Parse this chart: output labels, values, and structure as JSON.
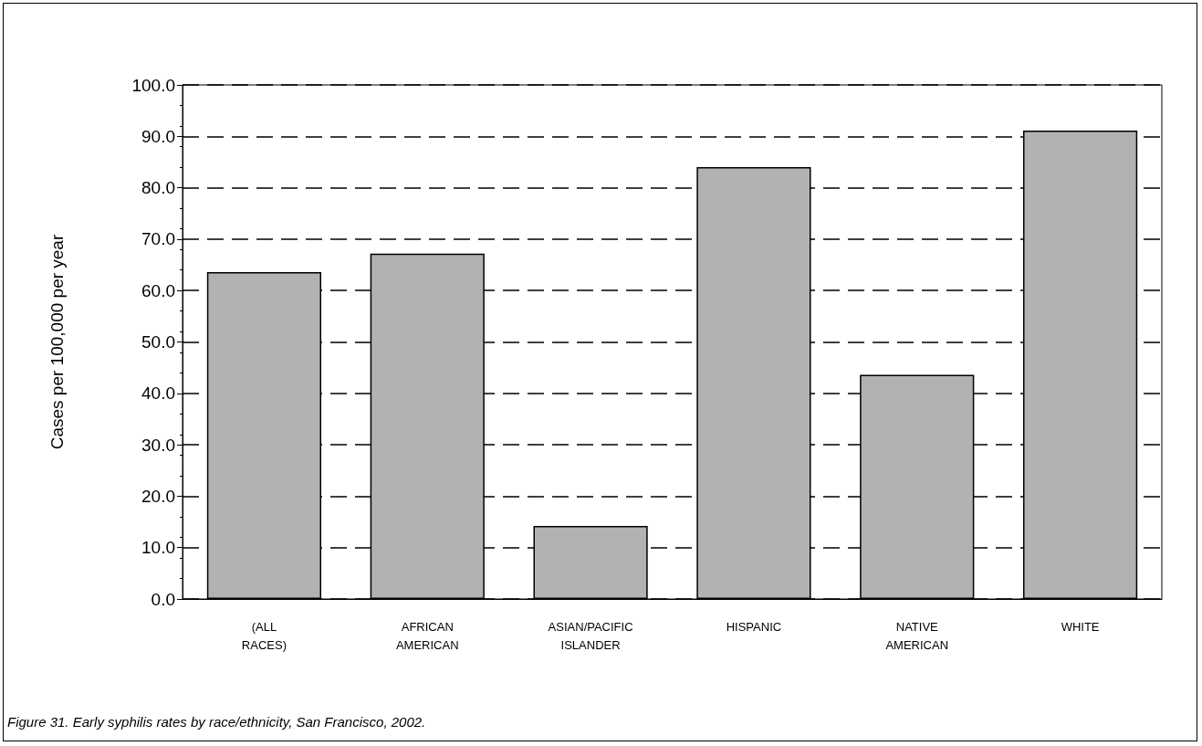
{
  "chart_data": {
    "type": "bar",
    "categories": [
      "(ALL RACES)",
      "AFRICAN AMERICAN",
      "ASIAN/PACIFIC ISLANDER",
      "HISPANIC",
      "NATIVE AMERICAN",
      "WHITE"
    ],
    "values": [
      63.6,
      67.2,
      14.2,
      84.0,
      43.6,
      91.1
    ],
    "color": "#b2b2b2",
    "ylabel": "Cases per 100,000 per year",
    "ylim": [
      0,
      100
    ],
    "yticks": [
      {
        "value": 0,
        "label": "0.0"
      },
      {
        "value": 10,
        "label": "10.0"
      },
      {
        "value": 20,
        "label": "20.0"
      },
      {
        "value": 30,
        "label": "30.0"
      },
      {
        "value": 40,
        "label": "40.0"
      },
      {
        "value": 50,
        "label": "50.0"
      },
      {
        "value": 60,
        "label": "60.0"
      },
      {
        "value": 70,
        "label": "70.0"
      },
      {
        "value": 80,
        "label": "80.0"
      },
      {
        "value": 90,
        "label": "90.0"
      },
      {
        "value": 100,
        "label": "100.0"
      }
    ],
    "grid": "y",
    "annotations": [
      "Figure 31.  Early syphilis rates by race/ethnicity, San Francisco, 2002."
    ]
  }
}
